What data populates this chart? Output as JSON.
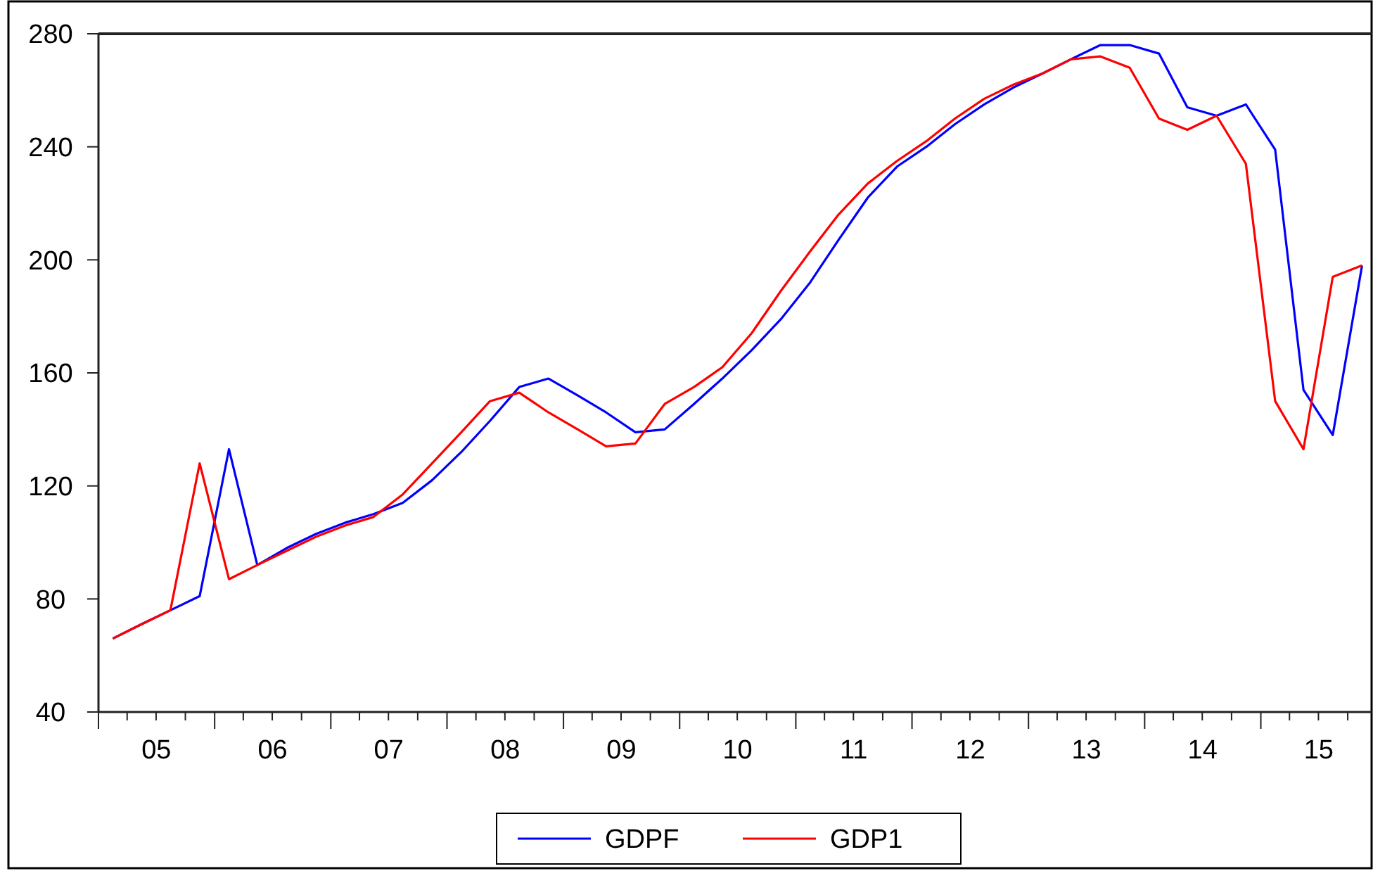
{
  "chart_data": {
    "type": "line",
    "x": [
      "2005-02-15",
      "2005-05-15",
      "2005-08-15",
      "2005-11-15",
      "2006-02-15",
      "2006-05-15",
      "2006-08-15",
      "2006-11-15",
      "2007-02-15",
      "2007-05-15",
      "2007-08-15",
      "2007-11-15",
      "2008-02-15",
      "2008-05-15",
      "2008-08-15",
      "2008-11-15",
      "2009-02-15",
      "2009-05-15",
      "2009-08-15",
      "2009-11-15",
      "2010-02-15",
      "2010-05-15",
      "2010-08-15",
      "2010-11-15",
      "2011-02-15",
      "2011-05-15",
      "2011-08-15",
      "2011-11-15",
      "2012-02-15",
      "2012-05-15",
      "2012-08-15",
      "2012-11-15",
      "2013-02-15",
      "2013-05-15",
      "2013-08-15",
      "2013-11-15",
      "2014-02-15",
      "2014-05-15",
      "2014-08-15",
      "2014-11-15",
      "2015-02-15",
      "2015-05-15",
      "2015-08-15",
      "2015-11-15"
    ],
    "series": [
      {
        "name": "GDPF",
        "color": "#0000ff",
        "values": [
          66,
          71,
          76,
          81,
          133,
          92,
          98,
          103,
          107,
          110,
          114,
          122,
          132,
          143,
          155,
          158,
          152,
          146,
          139,
          140,
          149,
          158,
          168,
          179,
          192,
          207,
          222,
          233,
          240,
          248,
          255,
          261,
          266,
          271,
          276,
          276,
          273,
          254,
          251,
          255,
          239,
          154,
          138,
          198
        ]
      },
      {
        "name": "GDP1",
        "color": "#ff0000",
        "values": [
          66,
          71,
          76,
          128,
          87,
          92,
          97,
          102,
          106,
          109,
          117,
          128,
          139,
          150,
          153,
          146,
          140,
          134,
          135,
          149,
          155,
          162,
          174,
          189,
          203,
          216,
          227,
          235,
          242,
          250,
          257,
          262,
          266,
          271,
          272,
          268,
          250,
          246,
          251,
          234,
          150,
          133,
          194,
          198
        ]
      }
    ],
    "xlim": [
      "2005-01-01",
      "2015-12-15"
    ],
    "xticks": [
      {
        "value": "2005-07-02",
        "label": "05"
      },
      {
        "value": "2006-07-02",
        "label": "06"
      },
      {
        "value": "2007-07-02",
        "label": "07"
      },
      {
        "value": "2008-07-02",
        "label": "08"
      },
      {
        "value": "2009-07-02",
        "label": "09"
      },
      {
        "value": "2010-07-02",
        "label": "10"
      },
      {
        "value": "2011-07-02",
        "label": "11"
      },
      {
        "value": "2012-07-02",
        "label": "12"
      },
      {
        "value": "2013-07-02",
        "label": "13"
      },
      {
        "value": "2014-07-02",
        "label": "14"
      },
      {
        "value": "2015-07-02",
        "label": "15"
      }
    ],
    "ylim": [
      40,
      280
    ],
    "yticks": [
      40,
      80,
      120,
      160,
      200,
      240,
      280
    ],
    "legend": "bottom"
  }
}
